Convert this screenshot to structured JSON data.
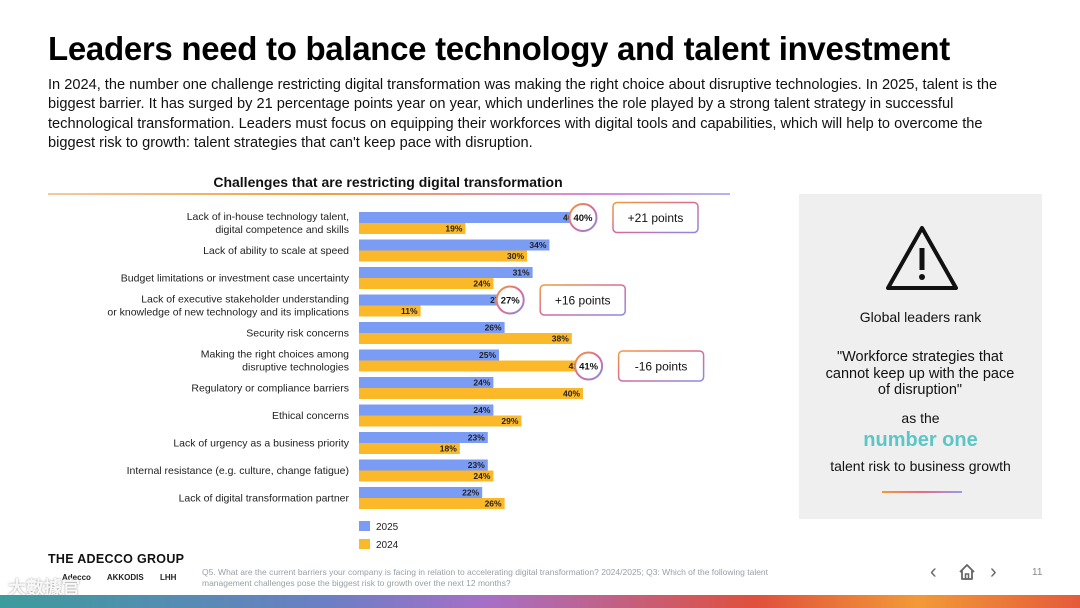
{
  "title": "Leaders need to balance technology and talent investment",
  "intro": "In 2024, the number one challenge restricting digital transformation was making the right choice about disruptive technologies. In 2025, talent is the biggest barrier. It has surged by 21 percentage points year on year, which underlines the role played by a strong talent strategy in successful technological transformation. Leaders must focus on equipping their workforces with digital tools and capabilities, which will help to overcome the biggest risk to growth: talent strategies that can't keep pace with disruption.",
  "chart_data": {
    "type": "bar",
    "orientation": "horizontal",
    "title": "Challenges that are restricting digital transformation",
    "categories": [
      [
        "Lack of in-house technology talent,",
        "digital competence and skills"
      ],
      [
        "Lack of ability to scale at speed"
      ],
      [
        "Budget limitations or investment case uncertainty"
      ],
      [
        "Lack of executive stakeholder understanding",
        "or knowledge of new technology and its implications"
      ],
      [
        "Security risk concerns"
      ],
      [
        "Making the right choices among",
        "disruptive technologies"
      ],
      [
        "Regulatory or compliance barriers"
      ],
      [
        "Ethical concerns"
      ],
      [
        "Lack of urgency as a business priority"
      ],
      [
        "Internal resistance (e.g. culture, change fatigue)"
      ],
      [
        "Lack of digital transformation partner"
      ]
    ],
    "series": [
      {
        "name": "2025",
        "color": "#7b9cf5",
        "values": [
          40,
          34,
          31,
          27,
          26,
          25,
          24,
          24,
          23,
          23,
          22
        ]
      },
      {
        "name": "2024",
        "color": "#fbb829",
        "values": [
          19,
          30,
          24,
          11,
          38,
          41,
          40,
          29,
          18,
          24,
          26
        ]
      }
    ],
    "value_suffix": "%",
    "xlim": [
      0,
      45
    ],
    "highlights": [
      {
        "category_index": 0,
        "series": "2025",
        "value": 40,
        "label": "+21 points"
      },
      {
        "category_index": 3,
        "series": "2025",
        "value": 27,
        "label": "+16 points"
      },
      {
        "category_index": 5,
        "series": "2024",
        "value": 41,
        "label": "-16 points"
      }
    ],
    "legend": [
      "2025",
      "2024"
    ],
    "legend_position": "bottom-left"
  },
  "side_panel": {
    "icon": "warning-triangle-icon",
    "rank_label": "Global leaders rank",
    "quote": "\"Workforce strategies that cannot keep up with the pace of disruption\"",
    "as_the": "as the",
    "highlight": "number one",
    "highlight_color": "#5cc6c6",
    "tail": "talent risk to business growth"
  },
  "footer": {
    "brand": "THE ADECCO GROUP",
    "sub_brands": [
      "Adecco",
      "AKKODIS",
      "LHH"
    ],
    "footnote": "Q5. What are the current barriers your company is facing in relation to accelerating digital transformation? 2024/2025; Q3: Which of the following talent management challenges pose the biggest risk to growth over the next 12 months?",
    "page_number": "11",
    "watermark": "大數據官"
  },
  "colors": {
    "accent_2025": "#7b9cf5",
    "accent_2024": "#fbb829"
  }
}
